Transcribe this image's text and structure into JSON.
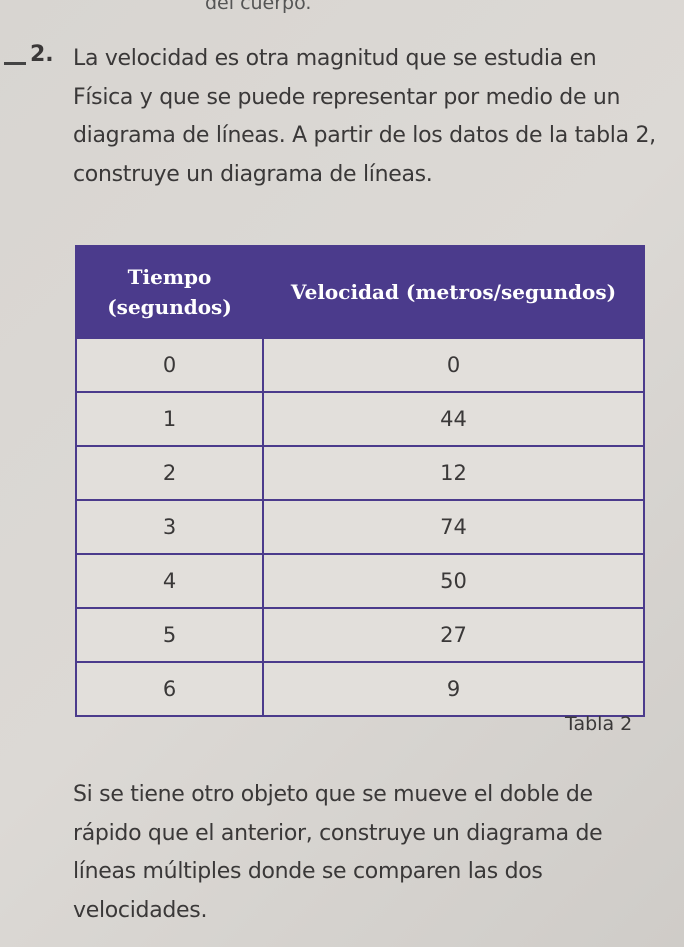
{
  "header_fragment": "del cuerpo.",
  "exercise": {
    "number": "2.",
    "prompt": "La velocidad es otra magnitud que se estudia en Física y que se puede representar por medio de un diagrama de líneas. A partir de los datos de la tabla 2, construye un diagrama de líneas."
  },
  "table": {
    "headers": [
      "Tiempo (segundos)",
      "Velocidad (metros/segundos)"
    ],
    "rows": [
      [
        "0",
        "0"
      ],
      [
        "1",
        "44"
      ],
      [
        "2",
        "12"
      ],
      [
        "3",
        "74"
      ],
      [
        "4",
        "50"
      ],
      [
        "5",
        "27"
      ],
      [
        "6",
        "9"
      ]
    ],
    "caption": "Tabla 2"
  },
  "followup": "Si se tiene otro objeto que se mueve el doble de rápido que el anterior, construye un diagrama de líneas múltiples donde se comparen las dos velocidades."
}
